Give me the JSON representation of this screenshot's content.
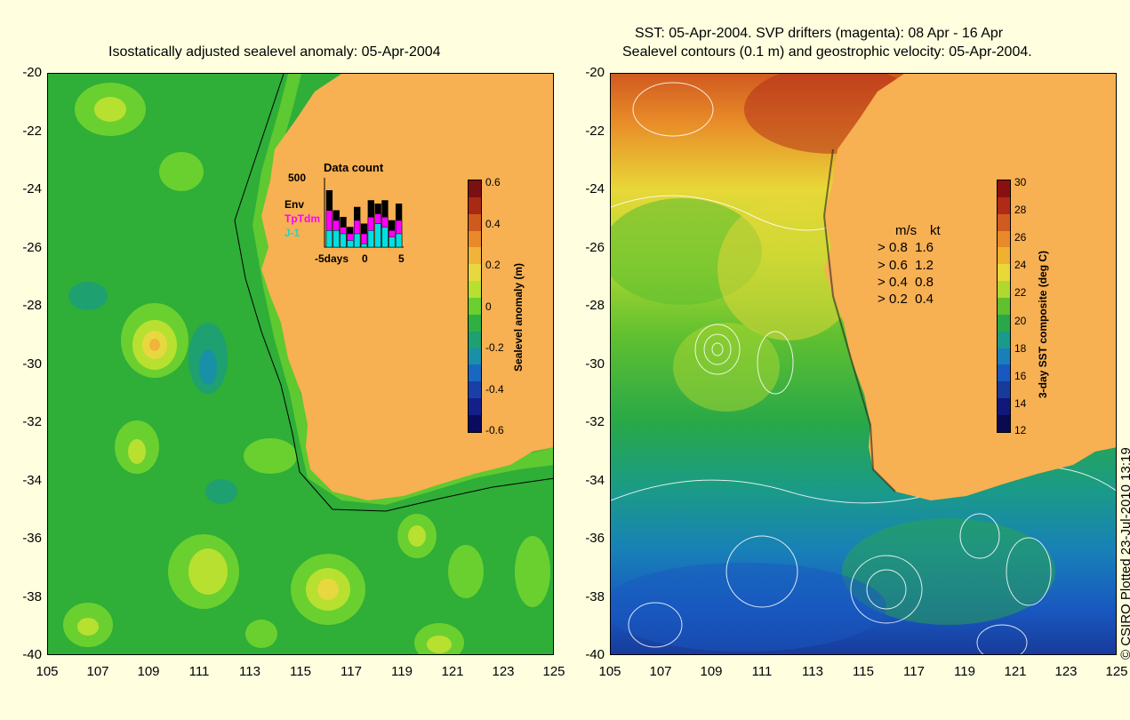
{
  "left_title": "Isostatically adjusted sealevel anomaly: 05-Apr-2004",
  "right_title_line1": "SST: 05-Apr-2004. SVP drifters (magenta): 08 Apr - 16 Apr",
  "right_title_line2": "Sealevel contours (0.1 m) and geostrophic velocity: 05-Apr-2004.",
  "y_ticks": [
    "-20",
    "-22",
    "-24",
    "-26",
    "-28",
    "-30",
    "-32",
    "-34",
    "-36",
    "-38",
    "-40"
  ],
  "x_ticks": [
    "105",
    "107",
    "109",
    "111",
    "113",
    "115",
    "117",
    "119",
    "121",
    "123",
    "125"
  ],
  "left_colorbar": {
    "title": "Sealevel anomaly (m)",
    "labels": [
      "0.6",
      "0.4",
      "0.2",
      "0",
      "-0.2",
      "-0.4",
      "-0.6"
    ],
    "colors": [
      "#7a1010",
      "#a82a14",
      "#cf5a1e",
      "#e88a2a",
      "#f0b43a",
      "#e8d840",
      "#b8e030",
      "#6ad030",
      "#30b040",
      "#1fa070",
      "#1890a8",
      "#1868c0",
      "#1a40a8",
      "#14208a",
      "#0a0a60"
    ]
  },
  "inset": {
    "title": "Data count",
    "ymax": "500",
    "series": [
      "Env",
      "TpTdm",
      "J-1"
    ],
    "series_colors": [
      "#000000",
      "#ff00ff",
      "#00e0e0"
    ],
    "xlabel_left": "-5days",
    "xlabel_mid": "0",
    "xlabel_right": "5",
    "bars": [
      {
        "env": 0.85,
        "tp": 0.55,
        "j1": 0.25
      },
      {
        "env": 0.55,
        "tp": 0.4,
        "j1": 0.25
      },
      {
        "env": 0.45,
        "tp": 0.3,
        "j1": 0.2
      },
      {
        "env": 0.3,
        "tp": 0.2,
        "j1": 0.1
      },
      {
        "env": 0.6,
        "tp": 0.4,
        "j1": 0.2
      },
      {
        "env": 0.35,
        "tp": 0.2,
        "j1": 0.05
      },
      {
        "env": 0.7,
        "tp": 0.45,
        "j1": 0.25
      },
      {
        "env": 0.65,
        "tp": 0.5,
        "j1": 0.35
      },
      {
        "env": 0.7,
        "tp": 0.45,
        "j1": 0.3
      },
      {
        "env": 0.4,
        "tp": 0.25,
        "j1": 0.15
      },
      {
        "env": 0.65,
        "tp": 0.4,
        "j1": 0.2
      }
    ]
  },
  "right_colorbar": {
    "title": "3-day SST composite (deg C)",
    "labels": [
      "30",
      "28",
      "26",
      "24",
      "22",
      "20",
      "18",
      "16",
      "14",
      "12"
    ],
    "colors": [
      "#8a1010",
      "#b02a18",
      "#d05a20",
      "#e88a28",
      "#f0b030",
      "#e8d838",
      "#b0d830",
      "#60c030",
      "#28a848",
      "#1a9a8a",
      "#1880b8",
      "#1858c0",
      "#183a9a",
      "#10187a",
      "#0a0a50"
    ]
  },
  "velocity_legend": {
    "header_ms": "m/s",
    "header_kt": "kt",
    "rows": [
      {
        "ms": "0.8",
        "kt": "1.6"
      },
      {
        "ms": "0.6",
        "kt": "1.2"
      },
      {
        "ms": "0.4",
        "kt": "0.8"
      },
      {
        "ms": "0.2",
        "kt": "0.4"
      }
    ]
  },
  "credit": "© CSIRO Plotted 23-Jul-2010 13:19",
  "colors": {
    "land": "#f7b052",
    "background": "#ffffe0"
  }
}
